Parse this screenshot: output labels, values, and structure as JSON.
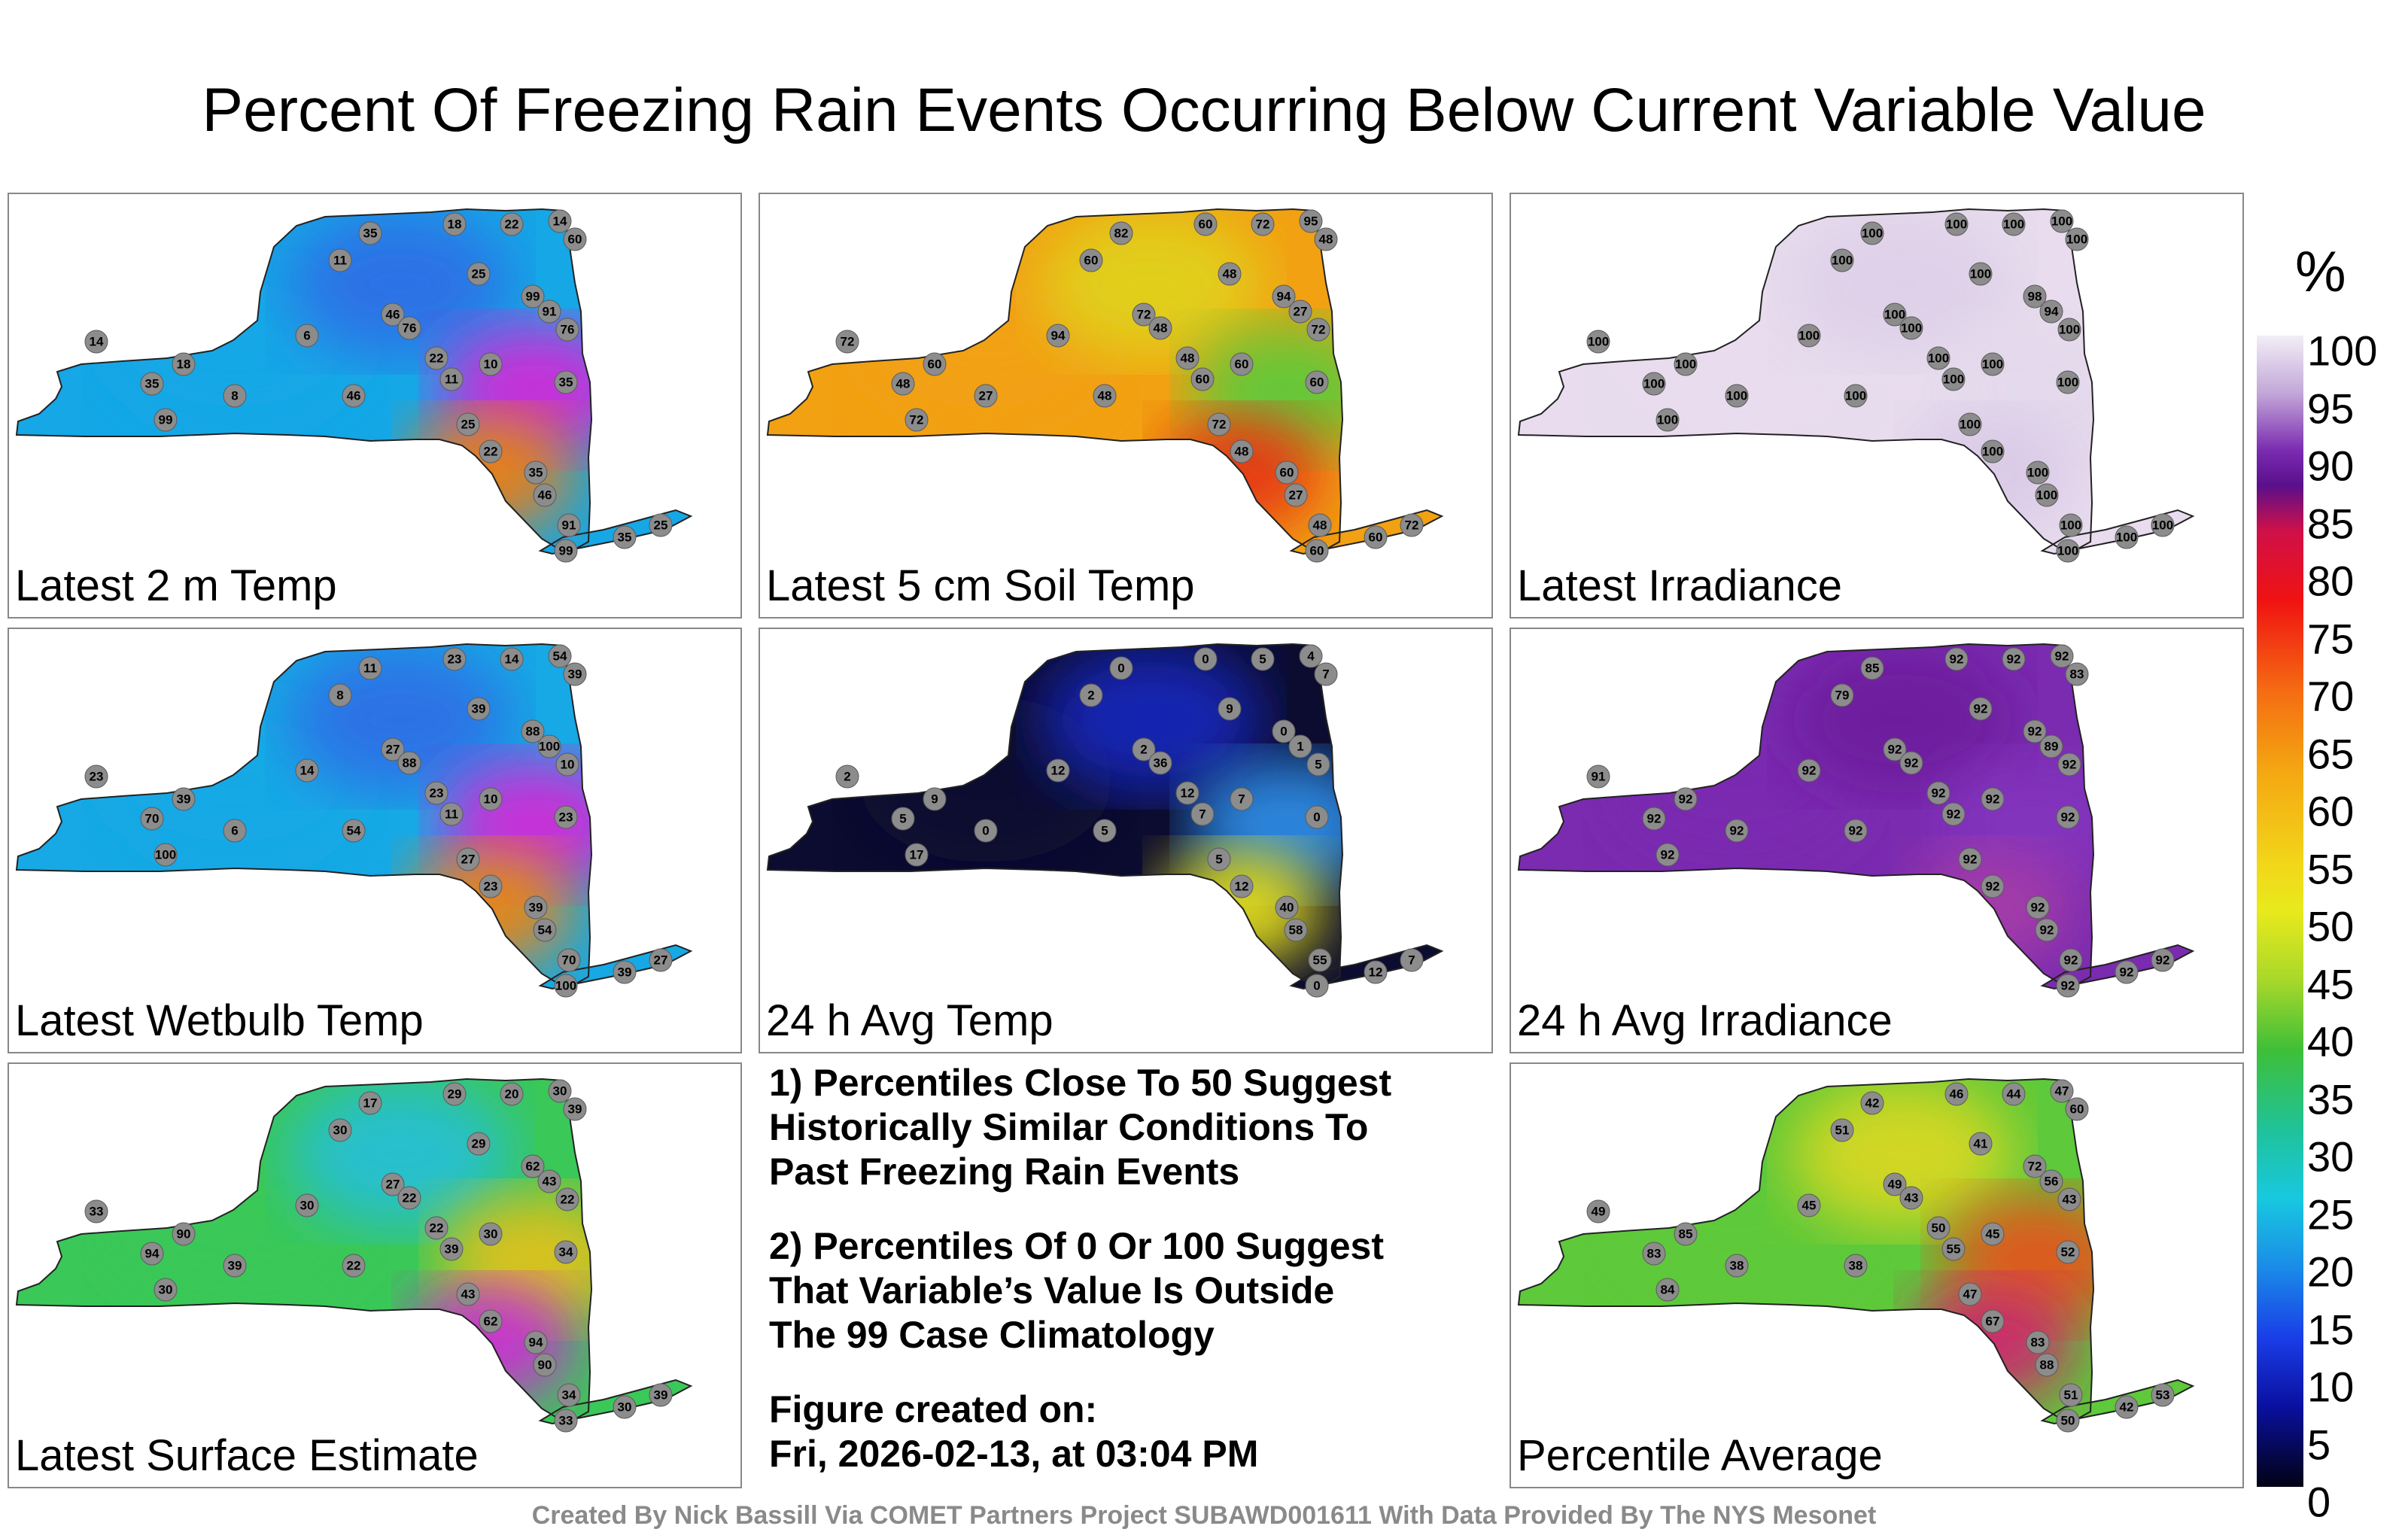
{
  "title": "Percent Of Freezing Rain Events Occurring Below Current Variable Value",
  "panels": [
    {
      "label": "Latest 2 m Temp",
      "colors": [
        "#15a7e6",
        "#2d6fe6",
        "#d02bd6",
        "#f27d0f"
      ],
      "values": [
        "18",
        "22",
        "14",
        "60",
        "35",
        "99",
        "91",
        "76",
        "11",
        "25",
        "35",
        "46",
        "22",
        "10",
        "8",
        "35",
        "18",
        "14",
        "6",
        "76",
        "11",
        "25",
        "22",
        "35",
        "46",
        "91",
        "99",
        "25",
        "35",
        "46",
        "99"
      ]
    },
    {
      "label": "Latest 5 cm Soil Temp",
      "colors": [
        "#f2a112",
        "#e0d11f",
        "#5ec93a",
        "#e43519"
      ],
      "values": [
        "60",
        "72",
        "95",
        "48",
        "82",
        "94",
        "27",
        "72",
        "60",
        "48",
        "60",
        "72",
        "48",
        "60",
        "27",
        "48",
        "60",
        "72",
        "94",
        "48",
        "60",
        "72",
        "48",
        "60",
        "27",
        "48",
        "60",
        "72",
        "60",
        "48",
        "72"
      ]
    },
    {
      "label": "Latest Irradiance",
      "colors": [
        "#e8dcee",
        "#ded0e8",
        "#e4d9ec",
        "#d9c9e6"
      ],
      "values": [
        "100",
        "100",
        "100",
        "100",
        "100",
        "98",
        "94",
        "100",
        "100",
        "100",
        "100",
        "100",
        "100",
        "100",
        "100",
        "100",
        "100",
        "100",
        "100",
        "100",
        "100",
        "100",
        "100",
        "100",
        "100",
        "100",
        "100",
        "100",
        "100",
        "100",
        "100"
      ]
    },
    {
      "label": "Latest Wetbulb Temp",
      "colors": [
        "#16a9e5",
        "#2d6fe6",
        "#d02bd6",
        "#f2840f"
      ],
      "values": [
        "23",
        "14",
        "54",
        "39",
        "11",
        "88",
        "100",
        "10",
        "8",
        "39",
        "23",
        "27",
        "23",
        "10",
        "6",
        "70",
        "39",
        "23",
        "14",
        "88",
        "11",
        "27",
        "23",
        "39",
        "54",
        "70",
        "100",
        "27",
        "39",
        "54",
        "100"
      ]
    },
    {
      "label": "24 h Avg Temp",
      "colors": [
        "#0c0c30",
        "#1326b8",
        "#2e8de6",
        "#e6e11c"
      ],
      "values": [
        "0",
        "5",
        "4",
        "7",
        "0",
        "0",
        "1",
        "5",
        "2",
        "9",
        "0",
        "2",
        "12",
        "7",
        "0",
        "5",
        "9",
        "2",
        "12",
        "36",
        "7",
        "5",
        "12",
        "40",
        "58",
        "55",
        "0",
        "7",
        "12",
        "5",
        "17"
      ]
    },
    {
      "label": "24 h Avg Irradiance",
      "colors": [
        "#7a2bb0",
        "#6d1f9d",
        "#8335bd",
        "#a63ea7"
      ],
      "values": [
        "92",
        "92",
        "92",
        "83",
        "85",
        "92",
        "89",
        "92",
        "79",
        "92",
        "92",
        "92",
        "92",
        "92",
        "92",
        "92",
        "92",
        "91",
        "92",
        "92",
        "92",
        "92",
        "92",
        "92",
        "92",
        "92",
        "92",
        "92",
        "92",
        "92",
        "92"
      ]
    },
    {
      "label": "Latest Surface Estimate",
      "colors": [
        "#3ac858",
        "#26bfd4",
        "#e0c11f",
        "#d02bd6"
      ],
      "values": [
        "29",
        "20",
        "30",
        "39",
        "17",
        "62",
        "43",
        "22",
        "30",
        "29",
        "34",
        "27",
        "22",
        "30",
        "39",
        "94",
        "90",
        "33",
        "30",
        "22",
        "39",
        "43",
        "62",
        "94",
        "90",
        "34",
        "33",
        "39",
        "30",
        "22",
        "30"
      ]
    },
    {
      "label": "Percentile Average",
      "colors": [
        "#5ec93a",
        "#d8d820",
        "#e4541a",
        "#d02070"
      ],
      "values": [
        "46",
        "44",
        "47",
        "60",
        "42",
        "72",
        "56",
        "43",
        "51",
        "41",
        "52",
        "49",
        "50",
        "45",
        "38",
        "83",
        "85",
        "49",
        "45",
        "43",
        "55",
        "47",
        "67",
        "83",
        "88",
        "51",
        "50",
        "53",
        "42",
        "38",
        "84"
      ]
    }
  ],
  "notes": {
    "item1": [
      "1) Percentiles Close To 50 Suggest",
      "Historically Similar Conditions To",
      "Past Freezing Rain Events"
    ],
    "item2": [
      "2) Percentiles Of 0 Or 100 Suggest",
      "That Variable’s Value Is Outside",
      "The 99 Case Climatology"
    ],
    "created_label": "Figure created on:",
    "created_date": "Fri, 2026-02-13, at 03:04 PM"
  },
  "colorbar": {
    "unit": "%",
    "ticks": [
      "100",
      "95",
      "90",
      "85",
      "80",
      "75",
      "70",
      "65",
      "60",
      "55",
      "50",
      "45",
      "40",
      "35",
      "30",
      "25",
      "20",
      "15",
      "10",
      "5",
      "0"
    ]
  },
  "footer": "Created By Nick Bassill Via COMET Partners Project SUBAWD001611 With Data Provided By The NYS Mesonet"
}
